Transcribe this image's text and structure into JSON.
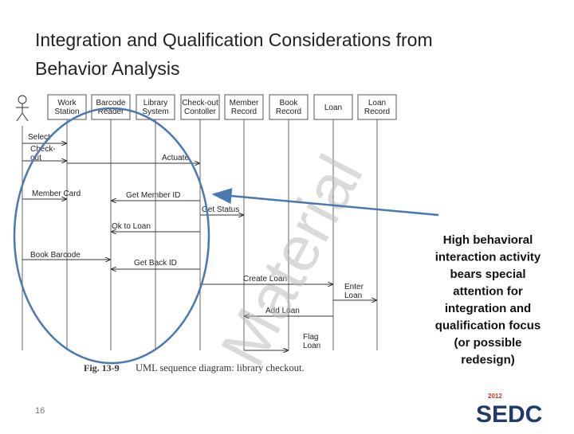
{
  "slide": {
    "title_lines": [
      "Integration and Qualification Considerations from",
      "Behavior Analysis"
    ],
    "diagram": {
      "lifelines": [
        [
          "Work",
          "Station"
        ],
        [
          "Barcode",
          "Reader"
        ],
        [
          "Library",
          "System"
        ],
        [
          "Check-out",
          "Contoller"
        ],
        [
          "Member",
          "Record"
        ],
        [
          "Book",
          "Record"
        ],
        [
          "Loan"
        ],
        [
          "Loan",
          "Record"
        ]
      ],
      "messages": [
        [
          "Select"
        ],
        [
          "Check-",
          "out"
        ],
        [
          "Actuate"
        ],
        [
          "Member Card"
        ],
        [
          "Get Member ID"
        ],
        [
          "Get Status"
        ],
        [
          "Ok to Loan"
        ],
        [
          "Book Barcode"
        ],
        [
          "Get Back ID"
        ],
        [
          "Create Loan"
        ],
        [
          "Enter",
          "Loan"
        ],
        [
          "Add Loan"
        ],
        [
          "Flag",
          "Loan"
        ]
      ],
      "caption_label": "Fig. 13-9",
      "caption": "UML sequence diagram: library checkout.",
      "watermark": "Material"
    },
    "annotation_lines": [
      "High behavioral",
      "interaction activity",
      "bears special",
      "attention for",
      "integration and",
      "qualification focus",
      "(or possible",
      "redesign)"
    ],
    "page_number": "16",
    "logo": {
      "year": "2012",
      "name": "SEDC"
    }
  }
}
